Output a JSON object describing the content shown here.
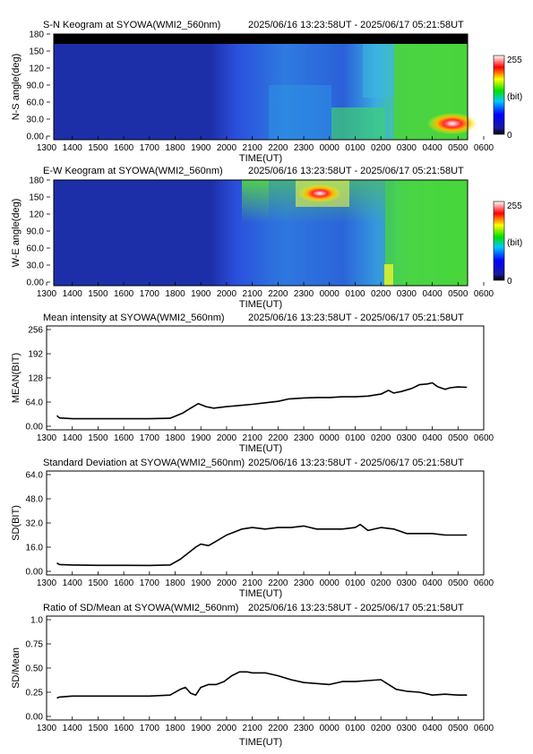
{
  "panels": {
    "sn": {
      "title": "S-N Keogram at SYOWA(WMI2_560nm)",
      "range": "2025/06/16 13:23:58UT - 2025/06/17 05:21:58UT",
      "ylabel": "N-S angle(deg)",
      "xlabel": "TIME(UT)"
    },
    "ew": {
      "title": "E-W Keogram at SYOWA(WMI2_560nm)",
      "range": "2025/06/16 13:23:58UT - 2025/06/17 05:21:58UT",
      "ylabel": "W-E angle(deg)",
      "xlabel": "TIME(UT)"
    },
    "mean": {
      "title": "Mean intensity at SYOWA(WMI2_560nm)",
      "range": "2025/06/16 13:23:58UT - 2025/06/17 05:21:58UT",
      "ylabel": "MEAN(BIT)",
      "xlabel": "TIME(UT)"
    },
    "sd": {
      "title": "Standard Deviation at SYOWA(WMI2_560nm)",
      "range": "2025/06/16 13:23:58UT - 2025/06/17 05:21:58UT",
      "ylabel": "SD(BIT)",
      "xlabel": "TIME(UT)"
    },
    "ratio": {
      "title": "Ratio of SD/Mean at SYOWA(WMI2_560nm)",
      "range": "2025/06/16 13:23:58UT - 2025/06/17 05:21:58UT",
      "ylabel": "SD/Mean",
      "xlabel": "TIME(UT)"
    }
  },
  "colorbar": {
    "max_label": "255",
    "min_label": "0",
    "unit_label": "(bit)"
  },
  "colors": {
    "line": "#000000",
    "frame": "#000000",
    "sky_blue": "#1d2fb8",
    "aurora_green": "#3ed83a"
  },
  "chart_data": [
    {
      "type": "heatmap",
      "title": "S-N Keogram at SYOWA(WMI2_560nm)",
      "xlabel": "TIME(UT)",
      "ylabel": "N-S angle(deg)",
      "x_ticks": [
        "1300",
        "1400",
        "1500",
        "1600",
        "1700",
        "1800",
        "1900",
        "2000",
        "2100",
        "2200",
        "2300",
        "0000",
        "0100",
        "0200",
        "0300",
        "0400",
        "0500",
        "0600"
      ],
      "y_ticks": [
        "0.00",
        "30.0",
        "60.0",
        "90.0",
        "120",
        "150",
        "180"
      ],
      "ylim": [
        0,
        180
      ],
      "colorscale": {
        "min": 0,
        "max": 255,
        "unit": "(bit)"
      }
    },
    {
      "type": "heatmap",
      "title": "E-W Keogram at SYOWA(WMI2_560nm)",
      "xlabel": "TIME(UT)",
      "ylabel": "W-E angle(deg)",
      "x_ticks": [
        "1300",
        "1400",
        "1500",
        "1600",
        "1700",
        "1800",
        "1900",
        "2000",
        "2100",
        "2200",
        "2300",
        "0000",
        "0100",
        "0200",
        "0300",
        "0400",
        "0500",
        "0600"
      ],
      "y_ticks": [
        "0.00",
        "30.0",
        "60.0",
        "90.0",
        "120",
        "150",
        "180"
      ],
      "ylim": [
        0,
        180
      ],
      "colorscale": {
        "min": 0,
        "max": 255,
        "unit": "(bit)"
      }
    },
    {
      "type": "line",
      "title": "Mean intensity at SYOWA(WMI2_560nm)",
      "xlabel": "TIME(UT)",
      "ylabel": "MEAN(BIT)",
      "x_ticks": [
        "1300",
        "1400",
        "1500",
        "1600",
        "1700",
        "1800",
        "1900",
        "2000",
        "2100",
        "2200",
        "2300",
        "0000",
        "0100",
        "0200",
        "0300",
        "0400",
        "0500",
        "0600"
      ],
      "y_ticks": [
        "0.00",
        "64.0",
        "128",
        "192",
        "256"
      ],
      "ylim": [
        0,
        256
      ],
      "series": [
        {
          "x": [
            13.4,
            13.5,
            14.0,
            15.0,
            16.0,
            17.0,
            17.8,
            18.3,
            18.6,
            18.9,
            19.2,
            19.5,
            20.0,
            20.5,
            21.0,
            21.5,
            22.0,
            22.4,
            23.0,
            23.5,
            24.0,
            24.5,
            25.0,
            25.5,
            26.0,
            26.3,
            26.5,
            26.8,
            27.2,
            27.5,
            27.8,
            28.0,
            28.2,
            28.5,
            28.7,
            29.0,
            29.35
          ],
          "y": [
            28,
            22,
            20,
            20,
            20,
            20,
            21,
            35,
            48,
            60,
            52,
            48,
            52,
            55,
            58,
            62,
            66,
            72,
            75,
            76,
            76,
            78,
            78,
            80,
            85,
            95,
            88,
            92,
            100,
            110,
            112,
            115,
            105,
            98,
            102,
            104,
            103
          ]
        }
      ]
    },
    {
      "type": "line",
      "title": "Standard Deviation at SYOWA(WMI2_560nm)",
      "xlabel": "TIME(UT)",
      "ylabel": "SD(BIT)",
      "x_ticks": [
        "1300",
        "1400",
        "1500",
        "1600",
        "1700",
        "1800",
        "1900",
        "2000",
        "2100",
        "2200",
        "2300",
        "0000",
        "0100",
        "0200",
        "0300",
        "0400",
        "0500",
        "0600"
      ],
      "y_ticks": [
        "0.00",
        "16.0",
        "32.0",
        "48.0",
        "64.0"
      ],
      "ylim": [
        0,
        64
      ],
      "series": [
        {
          "x": [
            13.4,
            13.5,
            14.0,
            15.0,
            16.0,
            17.0,
            17.8,
            18.2,
            18.5,
            18.8,
            19.0,
            19.3,
            19.6,
            20.0,
            20.3,
            20.6,
            21.0,
            21.5,
            22.0,
            22.5,
            23.0,
            23.5,
            24.0,
            24.5,
            25.0,
            25.2,
            25.5,
            26.0,
            26.5,
            27.0,
            27.5,
            28.0,
            28.5,
            29.0,
            29.35
          ],
          "y": [
            5.5,
            4.5,
            4.2,
            4.0,
            4.0,
            3.9,
            4.2,
            8,
            12,
            16,
            18,
            17,
            20,
            24,
            26,
            28,
            29,
            28,
            29,
            29,
            30,
            28,
            28,
            28,
            29,
            31,
            27,
            29,
            28,
            25,
            25,
            25,
            24,
            24,
            24
          ]
        }
      ]
    },
    {
      "type": "line",
      "title": "Ratio of SD/Mean at SYOWA(WMI2_560nm)",
      "xlabel": "TIME(UT)",
      "ylabel": "SD/Mean",
      "x_ticks": [
        "1300",
        "1400",
        "1500",
        "1600",
        "1700",
        "1800",
        "1900",
        "2000",
        "2100",
        "2200",
        "2300",
        "0000",
        "0100",
        "0200",
        "0300",
        "0400",
        "0500",
        "0600"
      ],
      "y_ticks": [
        "0.00",
        "0.25",
        "0.50",
        "0.75",
        "1.0"
      ],
      "ylim": [
        0,
        1.0
      ],
      "series": [
        {
          "x": [
            13.4,
            13.5,
            14.0,
            15.0,
            16.0,
            17.0,
            17.8,
            18.2,
            18.4,
            18.6,
            18.8,
            19.0,
            19.3,
            19.6,
            19.9,
            20.2,
            20.5,
            20.8,
            21.0,
            21.5,
            22.0,
            22.5,
            23.0,
            23.5,
            24.0,
            24.5,
            25.0,
            25.5,
            26.0,
            26.3,
            26.6,
            27.0,
            27.5,
            28.0,
            28.5,
            29.0,
            29.35
          ],
          "y": [
            0.19,
            0.2,
            0.21,
            0.21,
            0.21,
            0.21,
            0.22,
            0.28,
            0.3,
            0.24,
            0.22,
            0.3,
            0.33,
            0.33,
            0.36,
            0.42,
            0.46,
            0.46,
            0.45,
            0.45,
            0.42,
            0.38,
            0.35,
            0.34,
            0.33,
            0.36,
            0.36,
            0.37,
            0.38,
            0.33,
            0.28,
            0.26,
            0.25,
            0.22,
            0.23,
            0.22,
            0.22
          ]
        }
      ]
    }
  ]
}
